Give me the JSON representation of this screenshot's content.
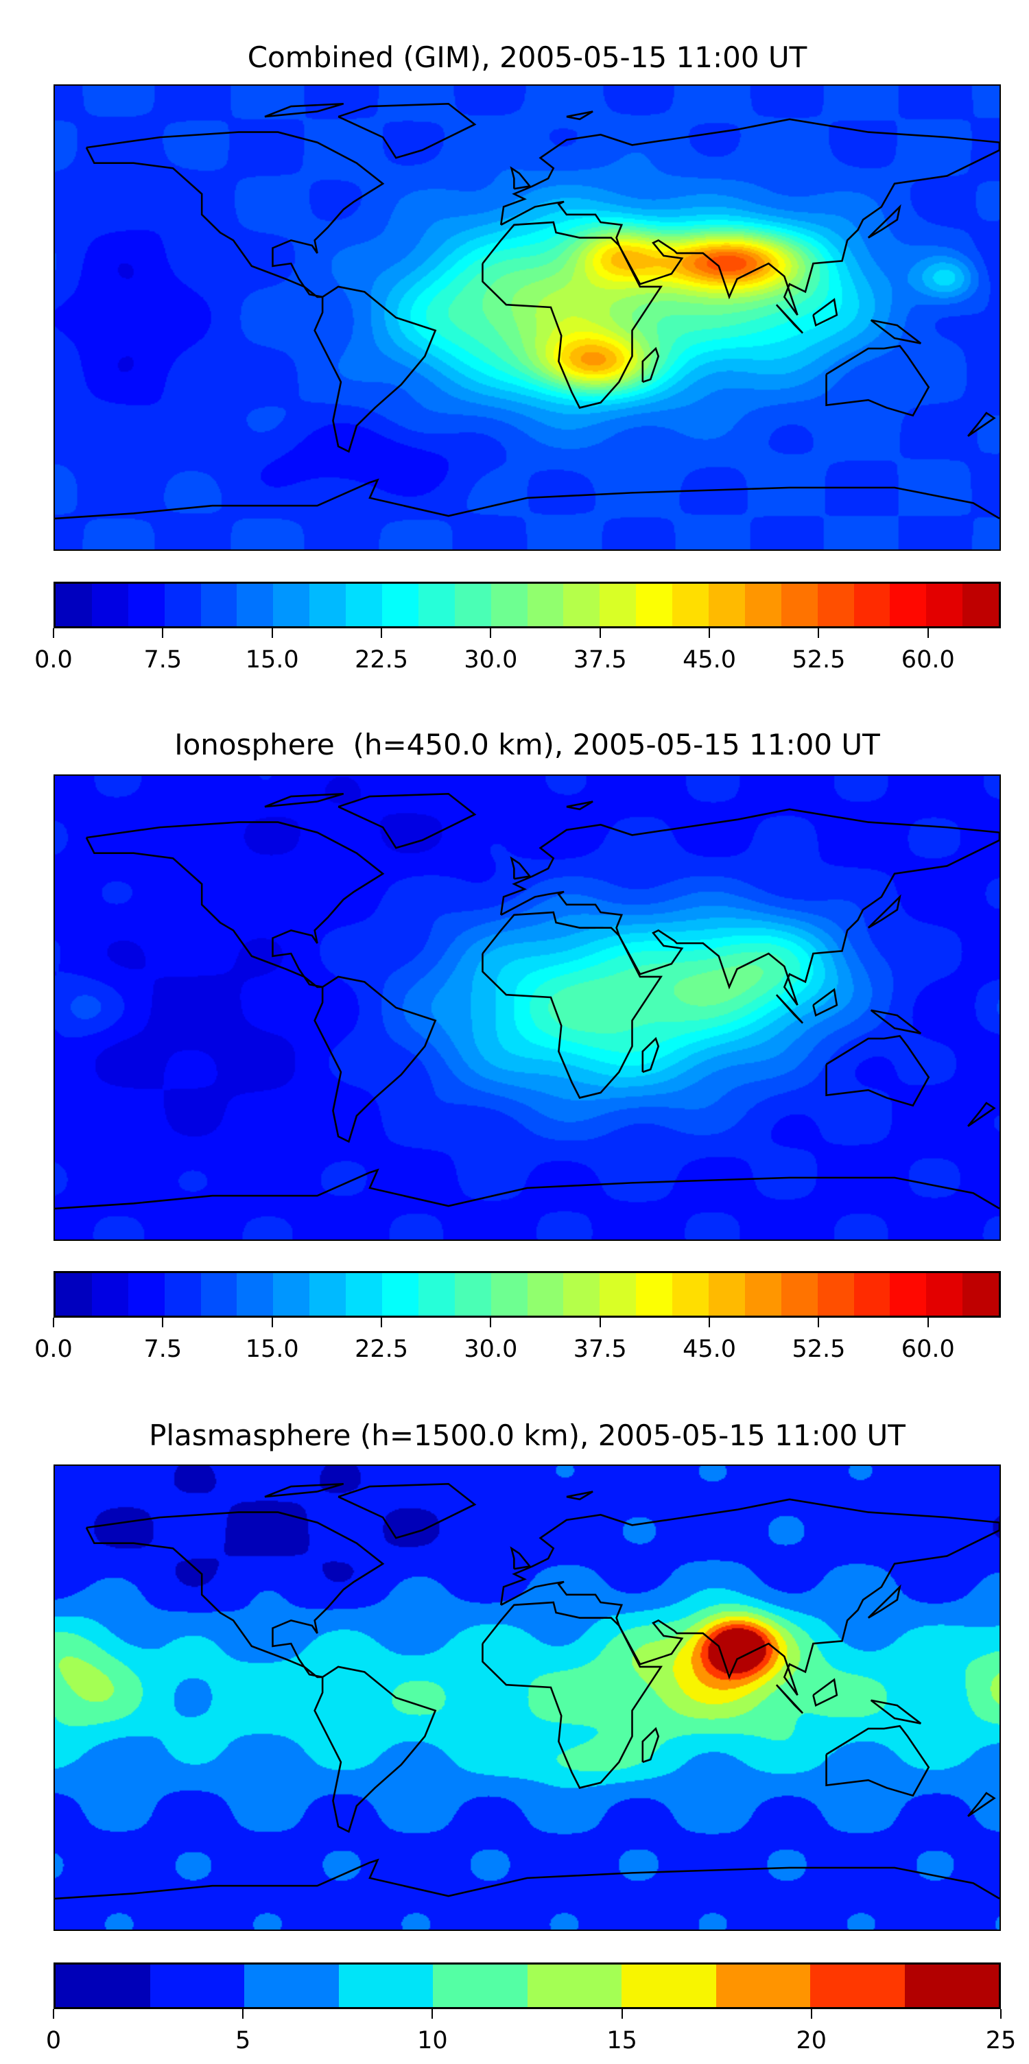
{
  "chart_data": [
    {
      "type": "heatmap",
      "title": "Combined (GIM), 2005-05-15 11:00 UT",
      "xlim": [
        -180,
        180
      ],
      "ylim": [
        -90,
        90
      ],
      "levels": {
        "min": 0,
        "max": 65,
        "step": 2.5
      },
      "colorbar_ticks": [
        "0.0",
        "7.5",
        "15.0",
        "22.5",
        "30.0",
        "37.5",
        "45.0",
        "52.5",
        "60.0"
      ],
      "colorbar_tick_values": [
        0,
        7.5,
        15,
        22.5,
        30,
        37.5,
        45,
        52.5,
        60
      ],
      "colormap": "jet",
      "base_value": 10,
      "features": [
        {
          "lon": 20,
          "lat": 5,
          "amp": 25,
          "slon": 40,
          "slat": 25
        },
        {
          "lon": 25,
          "lat": -18,
          "amp": 22,
          "slon": 15,
          "slat": 8
        },
        {
          "lon": 75,
          "lat": 22,
          "amp": 30,
          "slon": 18,
          "slat": 8
        },
        {
          "lon": 35,
          "lat": 25,
          "amp": 15,
          "slon": 12,
          "slat": 8
        },
        {
          "lon": 100,
          "lat": 10,
          "amp": 15,
          "slon": 25,
          "slat": 20
        },
        {
          "lon": -150,
          "lat": 0,
          "amp": -5,
          "slon": 20,
          "slat": 30
        },
        {
          "lon": -60,
          "lat": -55,
          "amp": -5,
          "slon": 30,
          "slat": 10
        },
        {
          "lon": 160,
          "lat": 15,
          "amp": 10,
          "slon": 8,
          "slat": 6
        },
        {
          "lon": -30,
          "lat": 0,
          "amp": 6,
          "slon": 20,
          "slat": 15
        }
      ]
    },
    {
      "type": "heatmap",
      "title": "Ionosphere  (h=450.0 km), 2005-05-15 11:00 UT",
      "xlim": [
        -180,
        180
      ],
      "ylim": [
        -90,
        90
      ],
      "levels": {
        "min": 0,
        "max": 65,
        "step": 2.5
      },
      "colorbar_ticks": [
        "0.0",
        "7.5",
        "15.0",
        "22.5",
        "30.0",
        "37.5",
        "45.0",
        "52.5",
        "60.0"
      ],
      "colorbar_tick_values": [
        0,
        7.5,
        15,
        22.5,
        30,
        37.5,
        45,
        52.5,
        60
      ],
      "colormap": "jet",
      "base_value": 7,
      "features": [
        {
          "lon": 30,
          "lat": 0,
          "amp": 22,
          "slon": 45,
          "slat": 25
        },
        {
          "lon": 90,
          "lat": 15,
          "amp": 15,
          "slon": 25,
          "slat": 15
        },
        {
          "lon": -120,
          "lat": -10,
          "amp": -3,
          "slon": 40,
          "slat": 30
        },
        {
          "lon": -170,
          "lat": 0,
          "amp": 5,
          "slon": 10,
          "slat": 8
        },
        {
          "lon": -60,
          "lat": 70,
          "amp": -2,
          "slon": 50,
          "slat": 15
        }
      ]
    },
    {
      "type": "heatmap",
      "title": "Plasmasphere (h=1500.0 km), 2005-05-15 11:00 UT",
      "xlim": [
        -180,
        180
      ],
      "ylim": [
        -90,
        90
      ],
      "levels": {
        "min": 0,
        "max": 25,
        "step": 2.5
      },
      "colorbar_ticks": [
        "0",
        "5",
        "10",
        "15",
        "20",
        "25"
      ],
      "colorbar_tick_values": [
        0,
        5,
        10,
        15,
        20,
        25
      ],
      "colors": [
        "#0000b8",
        "#0018ff",
        "#0080ff",
        "#00e4f8",
        "#54ffa4",
        "#a4ff54",
        "#f8f500",
        "#ff9400",
        "#ff3800",
        "#b20000"
      ],
      "base_value": 4,
      "features": [
        {
          "lon": 40,
          "lat": 0,
          "amp": 6,
          "slon": 200,
          "slat": 25
        },
        {
          "lon": 80,
          "lat": 20,
          "amp": 18,
          "slon": 10,
          "slat": 8
        },
        {
          "lon": 70,
          "lat": 12,
          "amp": 6,
          "slon": 25,
          "slat": 15
        },
        {
          "lon": -170,
          "lat": 10,
          "amp": 5,
          "slon": 15,
          "slat": 15
        },
        {
          "lon": -100,
          "lat": 60,
          "amp": -2,
          "slon": 60,
          "slat": 20
        },
        {
          "lon": 20,
          "lat": -25,
          "amp": 4,
          "slon": 15,
          "slat": 6
        }
      ]
    }
  ]
}
